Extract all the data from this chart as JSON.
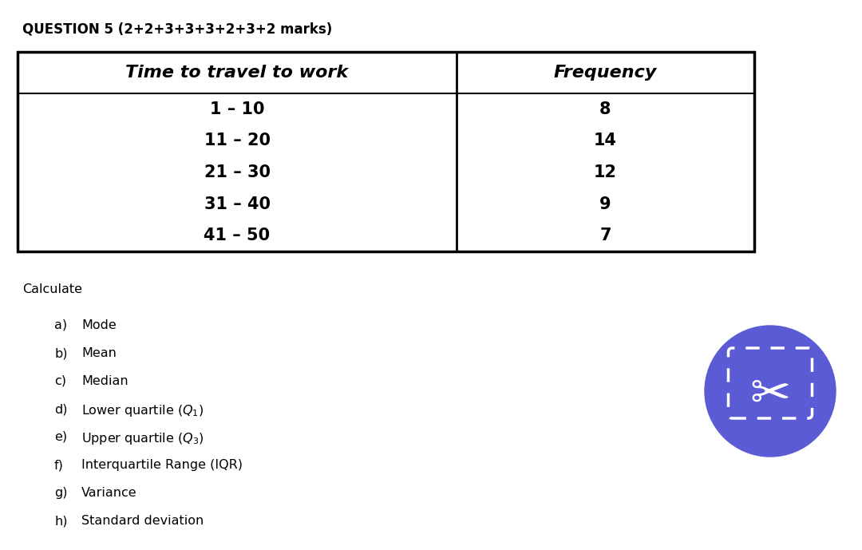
{
  "title": "QUESTION 5 (2+2+3+3+3+2+3+2 marks)",
  "col1_header": "Time to travel to work",
  "col2_header": "Frequency",
  "rows": [
    [
      "1 – 10",
      "8"
    ],
    [
      "11 – 20",
      "14"
    ],
    [
      "21 – 30",
      "12"
    ],
    [
      "31 – 40",
      "9"
    ],
    [
      "41 – 50",
      "7"
    ]
  ],
  "calculate_label": "Calculate",
  "list_items": [
    [
      "a)",
      "Mode"
    ],
    [
      "b)",
      "Mean"
    ],
    [
      "c)",
      "Median"
    ],
    [
      "d)",
      "Lower quartile ($Q_1$)"
    ],
    [
      "e)",
      "Upper quartile ($Q_3$)"
    ],
    [
      "f)",
      "Interquartile Range (IQR)"
    ],
    [
      "g)",
      "Variance"
    ],
    [
      "h)",
      "Standard deviation"
    ]
  ],
  "background_color": "#ffffff",
  "text_color": "#000000",
  "circle_color": "#5b5bd6",
  "table_border_color": "#000000",
  "title_fontsize": 12,
  "header_fontsize": 16,
  "row_fontsize": 15,
  "body_fontsize": 11.5,
  "item_label_fontsize": 11.5,
  "item_text_fontsize": 11.5
}
